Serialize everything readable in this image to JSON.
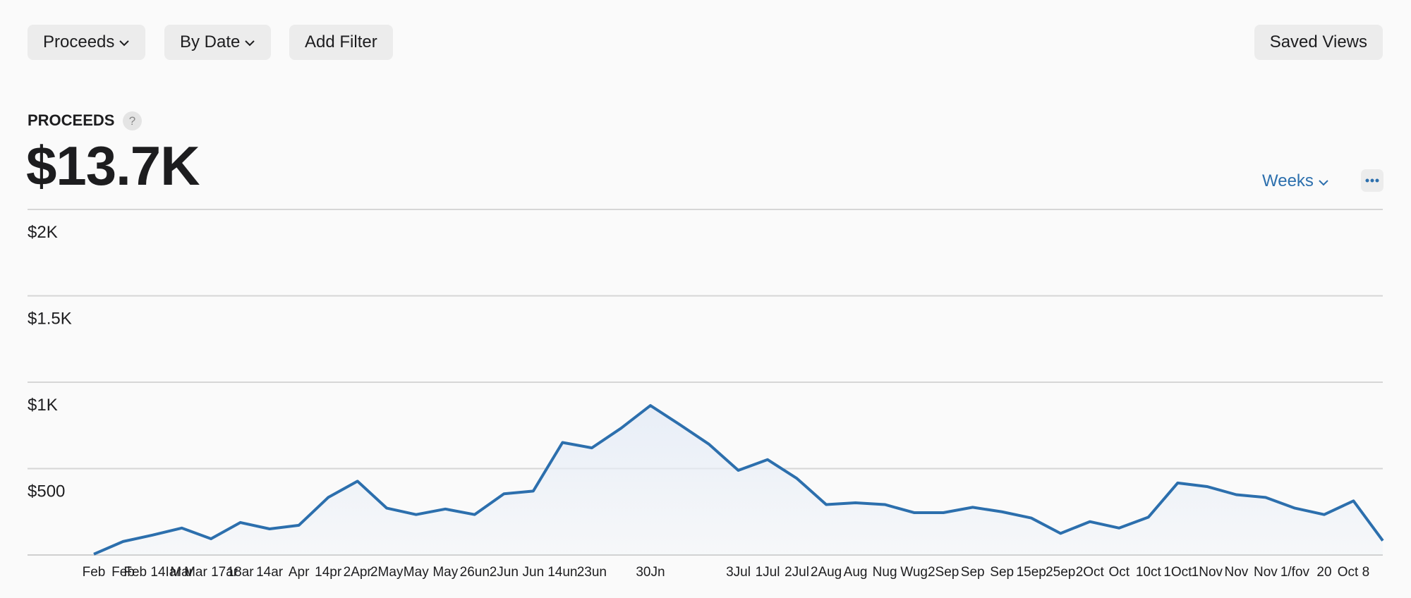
{
  "toolbar": {
    "filters": [
      "Proceeds",
      "By Date",
      "Add Filter"
    ],
    "saved_views": "Saved Views"
  },
  "metric": {
    "label": "PROCEEDS",
    "help": "?",
    "value": "$13.7K",
    "period": "Weeks"
  },
  "chart_data": {
    "type": "line",
    "color": "#2c6fad",
    "area_color": "#e8eef7",
    "grid": true,
    "ylim": [
      0,
      2000
    ],
    "yticks": [
      {
        "value": 500,
        "label": "$500"
      },
      {
        "value": 1000,
        "label": "$1K"
      },
      {
        "value": 1500,
        "label": "$1.5K"
      },
      {
        "value": 2000,
        "label": "$2K"
      }
    ],
    "categories": [
      "Feb",
      "Feb",
      "Feb 14Iar",
      "Mar",
      "Mar 17ar",
      "18ar",
      "14ar",
      "Apr",
      "14pr",
      "2Apr",
      "2May",
      "May",
      "May",
      "26un",
      "2Jun",
      "Jun",
      "14un",
      "23un",
      null,
      "30Jn",
      null,
      null,
      "3Jul",
      "1Jul",
      "2Jul",
      "2Aug",
      "Aug",
      "Nug",
      "Wug",
      "2Sep",
      "Sep",
      "Sep",
      "15ep",
      "25ep",
      "2Oct",
      "Oct",
      "10ct",
      "1Oct",
      "1Nov",
      "Nov",
      "Nov",
      "1/fov",
      "20",
      "Oct 8",
      null
    ],
    "values": [
      5,
      78,
      115,
      156,
      94,
      188,
      151,
      172,
      333,
      427,
      271,
      234,
      266,
      234,
      354,
      370,
      651,
      620,
      734,
      865,
      755,
      641,
      490,
      552,
      443,
      292,
      302,
      292,
      245,
      245,
      276,
      250,
      214,
      125,
      193,
      156,
      219,
      417,
      396,
      349,
      333,
      271,
      234,
      313,
      83
    ]
  }
}
